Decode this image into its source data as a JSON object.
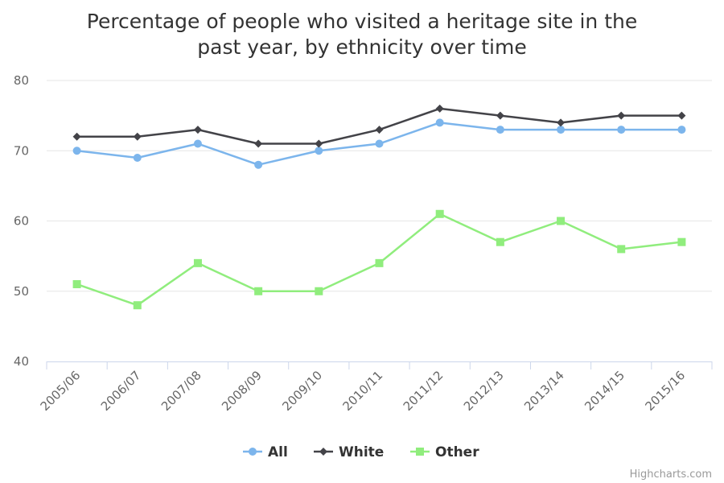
{
  "title_lines": [
    "Percentage of people who visited a heritage site in the",
    "past year, by ethnicity over time"
  ],
  "credits": "Highcharts.com",
  "chart_data": {
    "type": "line",
    "title": "Percentage of people who visited a heritage site in the past year, by ethnicity over time",
    "categories": [
      "2005/06",
      "2006/07",
      "2007/08",
      "2008/09",
      "2009/10",
      "2010/11",
      "2011/12",
      "2012/13",
      "2013/14",
      "2014/15",
      "2015/16"
    ],
    "ylim": [
      40,
      80
    ],
    "yticks": [
      40,
      50,
      60,
      70,
      80
    ],
    "grid": true,
    "legend_position": "bottom",
    "series": [
      {
        "name": "All",
        "color": "#7cb5ec",
        "marker": "circle",
        "values": [
          70,
          69,
          71,
          68,
          70,
          71,
          74,
          73,
          73,
          73,
          73
        ]
      },
      {
        "name": "White",
        "color": "#434348",
        "marker": "diamond",
        "values": [
          72,
          72,
          73,
          71,
          71,
          73,
          76,
          75,
          74,
          75,
          75
        ]
      },
      {
        "name": "Other",
        "color": "#90ed7d",
        "marker": "square",
        "values": [
          51,
          48,
          54,
          50,
          50,
          54,
          61,
          57,
          60,
          56,
          57
        ]
      }
    ]
  }
}
